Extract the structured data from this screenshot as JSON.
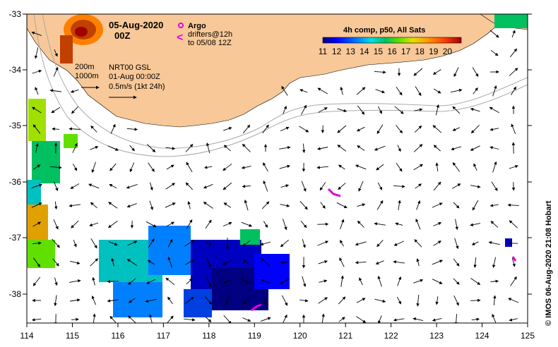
{
  "map": {
    "title_date": "05-Aug-2020",
    "title_hour": "00Z",
    "legend": {
      "argo_label": "Argo",
      "drifters_line1": "drifters@12h",
      "drifters_line2": "to 05/08 12Z",
      "argo_color": "#e000e0",
      "drifter_color": "#e000e0"
    },
    "isobaths": {
      "shallow": "200m",
      "deep": "1000m"
    },
    "product": {
      "line1": "NRT00 GSL",
      "line2": "01-Aug 00:00Z",
      "line3": "0.5m/s (1kt 24h)"
    },
    "colorbar": {
      "title": "4h comp, p50, All Sats",
      "ticks": [
        "11",
        "12",
        "13",
        "14",
        "15",
        "16",
        "17",
        "18",
        "19",
        "20"
      ],
      "min": 11,
      "max": 21
    },
    "axes": {
      "lon_ticks": [
        "114",
        "115",
        "116",
        "117",
        "118",
        "119",
        "120",
        "121",
        "122",
        "123",
        "124",
        "125"
      ],
      "lat_ticks": [
        "-33",
        "-34",
        "-35",
        "-36",
        "-37",
        "-38"
      ]
    },
    "credit": "© IMOS 06-Aug-2020 21:08 Hobart",
    "colors": {
      "land": "#f8c898",
      "frame": "#000000",
      "isobath": "#aaaaaa",
      "arrow": "#000000"
    }
  }
}
